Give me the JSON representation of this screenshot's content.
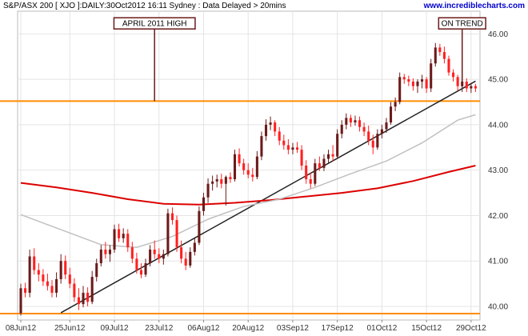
{
  "header": {
    "info": "S&P/ASX 200 [ XJO ]:DAILY:30Oct2012 16:11 Sydney : Data Delayed > 20mins",
    "brand": "www.incrediblecharts.com"
  },
  "chart_data": {
    "type": "candlestick",
    "title": "S&P/ASX 200 [ XJO ]:DAILY:30Oct2012 16:11 Sydney : Data Delayed > 20mins",
    "price_scale": "hundreds",
    "y_range": [
      39.7,
      46.5
    ],
    "y_ticks": [
      "40.00",
      "41.00",
      "42.00",
      "43.00",
      "44.00",
      "45.00",
      "46.00"
    ],
    "y_tick_values": [
      40,
      41,
      42,
      43,
      44,
      45,
      46
    ],
    "x_tick_labels": [
      {
        "label": "08Jun12",
        "index": 0
      },
      {
        "label": "25Jun12",
        "index": 11
      },
      {
        "label": "09Jul12",
        "index": 21
      },
      {
        "label": "23Jul12",
        "index": 31
      },
      {
        "label": "06Aug12",
        "index": 41
      },
      {
        "label": "20Aug12",
        "index": 51
      },
      {
        "label": "03Sep12",
        "index": 61
      },
      {
        "label": "17Sep12",
        "index": 71
      },
      {
        "label": "01Oct12",
        "index": 81
      },
      {
        "label": "15Oct12",
        "index": 91
      },
      {
        "label": "29Oct12",
        "index": 101
      }
    ],
    "bar_count": 103,
    "candles": [
      [
        39.85,
        40.5,
        39.8,
        40.4
      ],
      [
        40.4,
        40.52,
        40.2,
        40.3
      ],
      [
        40.3,
        41.25,
        40.2,
        41.1
      ],
      [
        41.1,
        41.28,
        40.7,
        40.8
      ],
      [
        40.8,
        40.95,
        40.55,
        40.7
      ],
      [
        40.7,
        40.82,
        40.45,
        40.55
      ],
      [
        40.55,
        40.72,
        40.35,
        40.45
      ],
      [
        40.45,
        40.58,
        40.2,
        40.3
      ],
      [
        40.3,
        40.75,
        40.2,
        40.6
      ],
      [
        40.6,
        41.15,
        40.5,
        41.0
      ],
      [
        41.0,
        41.12,
        40.6,
        40.7
      ],
      [
        40.7,
        40.85,
        40.4,
        40.5
      ],
      [
        40.5,
        40.62,
        40.1,
        40.2
      ],
      [
        40.2,
        40.4,
        39.92,
        40.05
      ],
      [
        40.05,
        40.45,
        39.98,
        40.3
      ],
      [
        40.3,
        40.42,
        40.0,
        40.1
      ],
      [
        40.1,
        40.78,
        40.05,
        40.65
      ],
      [
        40.65,
        41.05,
        40.55,
        40.95
      ],
      [
        40.95,
        41.35,
        40.88,
        41.25
      ],
      [
        41.25,
        41.42,
        41.05,
        41.15
      ],
      [
        41.15,
        41.35,
        40.98,
        41.25
      ],
      [
        41.25,
        41.8,
        41.18,
        41.7
      ],
      [
        41.7,
        41.82,
        41.42,
        41.5
      ],
      [
        41.5,
        41.72,
        41.4,
        41.6
      ],
      [
        41.6,
        41.7,
        41.2,
        41.3
      ],
      [
        41.3,
        41.42,
        40.95,
        41.05
      ],
      [
        41.05,
        41.18,
        40.72,
        40.8
      ],
      [
        40.8,
        40.95,
        40.62,
        40.7
      ],
      [
        40.7,
        41.05,
        40.65,
        40.95
      ],
      [
        40.95,
        41.35,
        40.88,
        41.25
      ],
      [
        41.25,
        41.45,
        41.05,
        41.15
      ],
      [
        41.15,
        41.28,
        40.95,
        41.05
      ],
      [
        41.05,
        41.25,
        40.92,
        41.15
      ],
      [
        41.15,
        42.15,
        41.1,
        42.05
      ],
      [
        42.05,
        42.18,
        41.8,
        41.9
      ],
      [
        41.9,
        42.0,
        41.2,
        41.3
      ],
      [
        41.3,
        41.45,
        40.95,
        41.05
      ],
      [
        41.05,
        41.2,
        40.8,
        40.9
      ],
      [
        40.9,
        41.3,
        40.85,
        41.2
      ],
      [
        41.2,
        41.5,
        41.12,
        41.4
      ],
      [
        41.4,
        42.2,
        41.35,
        42.1
      ],
      [
        42.1,
        42.5,
        42.0,
        42.4
      ],
      [
        42.4,
        42.82,
        42.28,
        42.7
      ],
      [
        42.7,
        42.88,
        42.55,
        42.75
      ],
      [
        42.75,
        42.9,
        42.62,
        42.8
      ],
      [
        42.8,
        42.92,
        42.6,
        42.7
      ],
      [
        42.7,
        42.88,
        42.22,
        42.85
      ],
      [
        42.85,
        42.95,
        42.72,
        42.8
      ],
      [
        42.8,
        43.45,
        42.75,
        43.35
      ],
      [
        43.35,
        43.48,
        43.08,
        43.15
      ],
      [
        43.15,
        43.25,
        42.9,
        43.0
      ],
      [
        43.0,
        43.15,
        42.82,
        42.9
      ],
      [
        42.9,
        43.05,
        42.75,
        42.85
      ],
      [
        42.85,
        43.42,
        42.8,
        43.3
      ],
      [
        43.3,
        43.85,
        43.22,
        43.75
      ],
      [
        43.75,
        44.12,
        43.65,
        44.0
      ],
      [
        44.0,
        44.18,
        43.88,
        44.05
      ],
      [
        44.05,
        44.1,
        43.75,
        43.85
      ],
      [
        43.85,
        43.95,
        43.55,
        43.65
      ],
      [
        43.65,
        43.78,
        43.45,
        43.55
      ],
      [
        43.55,
        43.68,
        43.35,
        43.45
      ],
      [
        43.45,
        43.6,
        43.35,
        43.5
      ],
      [
        43.5,
        43.62,
        43.38,
        43.45
      ],
      [
        43.45,
        43.55,
        43.0,
        43.1
      ],
      [
        43.1,
        43.22,
        42.7,
        42.8
      ],
      [
        42.8,
        42.95,
        42.6,
        42.7
      ],
      [
        42.7,
        43.25,
        42.65,
        43.15
      ],
      [
        43.15,
        43.3,
        42.98,
        43.05
      ],
      [
        43.05,
        43.35,
        42.98,
        43.25
      ],
      [
        43.25,
        43.45,
        43.15,
        43.35
      ],
      [
        43.35,
        43.55,
        43.2,
        43.3
      ],
      [
        43.3,
        43.9,
        43.25,
        43.8
      ],
      [
        43.8,
        44.1,
        43.7,
        44.0
      ],
      [
        44.0,
        44.25,
        43.9,
        44.15
      ],
      [
        44.15,
        44.22,
        43.95,
        44.05
      ],
      [
        44.05,
        44.2,
        43.98,
        44.1
      ],
      [
        44.1,
        44.18,
        43.85,
        43.95
      ],
      [
        43.95,
        44.05,
        43.75,
        43.85
      ],
      [
        43.85,
        43.98,
        43.55,
        43.65
      ],
      [
        43.65,
        43.78,
        43.35,
        43.5
      ],
      [
        43.5,
        43.9,
        43.45,
        43.8
      ],
      [
        43.8,
        44.0,
        43.7,
        43.9
      ],
      [
        43.9,
        44.15,
        43.82,
        44.05
      ],
      [
        44.05,
        44.5,
        44.0,
        44.4
      ],
      [
        44.4,
        44.6,
        44.3,
        44.5
      ],
      [
        44.5,
        45.15,
        44.45,
        45.05
      ],
      [
        45.05,
        45.12,
        44.9,
        45.0
      ],
      [
        45.0,
        45.08,
        44.85,
        44.95
      ],
      [
        44.95,
        45.02,
        44.75,
        44.85
      ],
      [
        44.85,
        45.0,
        44.7,
        44.95
      ],
      [
        44.95,
        45.1,
        44.8,
        45.0
      ],
      [
        45.0,
        45.05,
        44.7,
        44.8
      ],
      [
        44.8,
        45.45,
        44.72,
        45.35
      ],
      [
        45.35,
        45.8,
        45.28,
        45.7
      ],
      [
        45.7,
        45.78,
        45.52,
        45.6
      ],
      [
        45.6,
        45.72,
        45.35,
        45.45
      ],
      [
        45.45,
        45.52,
        45.08,
        45.15
      ],
      [
        45.15,
        45.22,
        44.95,
        45.05
      ],
      [
        45.05,
        45.1,
        44.75,
        44.85
      ],
      [
        44.85,
        45.0,
        44.72,
        44.95
      ],
      [
        44.95,
        45.02,
        44.72,
        44.8
      ],
      [
        44.8,
        44.92,
        44.7,
        44.85
      ],
      [
        44.85,
        44.9,
        44.72,
        44.8
      ]
    ],
    "overlays": [
      {
        "kind": "horizontal",
        "color": "#ff8c00",
        "value": 44.52
      },
      {
        "kind": "horizontal",
        "color": "#ff8c00",
        "value": 39.84
      },
      {
        "kind": "trendline",
        "color": "#222222",
        "from": [
          9,
          39.86
        ],
        "to": [
          102,
          44.96
        ]
      },
      {
        "kind": "moving_average",
        "color": "#dd0000",
        "points": [
          [
            0,
            42.72
          ],
          [
            8,
            42.62
          ],
          [
            16,
            42.5
          ],
          [
            24,
            42.36
          ],
          [
            32,
            42.26
          ],
          [
            40,
            42.24
          ],
          [
            48,
            42.28
          ],
          [
            56,
            42.34
          ],
          [
            64,
            42.42
          ],
          [
            72,
            42.5
          ],
          [
            80,
            42.6
          ],
          [
            88,
            42.76
          ],
          [
            96,
            42.96
          ],
          [
            102,
            43.1
          ]
        ]
      },
      {
        "kind": "moving_average",
        "color": "#c0c0c0",
        "points": [
          [
            0,
            42.02
          ],
          [
            6,
            41.8
          ],
          [
            12,
            41.58
          ],
          [
            18,
            41.36
          ],
          [
            26,
            41.3
          ],
          [
            34,
            41.54
          ],
          [
            42,
            41.92
          ],
          [
            50,
            42.2
          ],
          [
            58,
            42.36
          ],
          [
            66,
            42.62
          ],
          [
            74,
            42.92
          ],
          [
            82,
            43.2
          ],
          [
            90,
            43.6
          ],
          [
            98,
            44.1
          ],
          [
            102,
            44.22
          ]
        ]
      }
    ],
    "annotations": [
      {
        "label": "APRIL 2011 HIGH",
        "index": 30,
        "value": 44.52,
        "box_value": 46.25
      },
      {
        "label": "ON TREND",
        "index": 99,
        "value": 44.84,
        "box_value": 46.25
      }
    ]
  }
}
